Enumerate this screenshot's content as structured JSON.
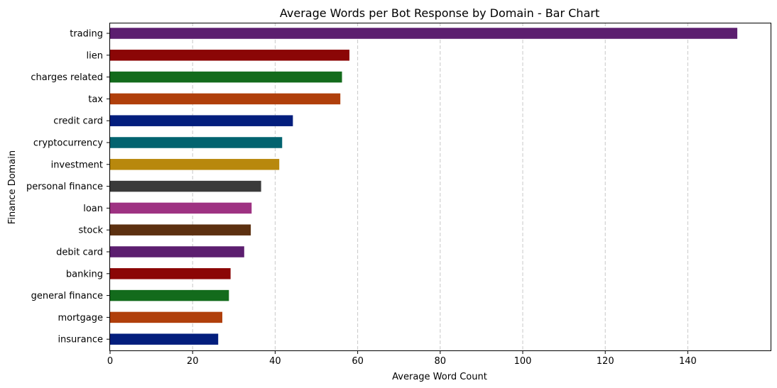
{
  "chart_data": {
    "type": "bar",
    "orientation": "horizontal",
    "title": "Average Words per Bot Response by Domain - Bar Chart",
    "xlabel": "Average Word Count",
    "ylabel": "Finance Domain",
    "xlim": [
      0,
      160
    ],
    "xticks": [
      0,
      20,
      40,
      60,
      80,
      100,
      120,
      140
    ],
    "grid": "x dashed",
    "categories": [
      "trading",
      "lien",
      "charges related",
      "tax",
      "credit card",
      "cryptocurrency",
      "investment",
      "personal finance",
      "loan",
      "stock",
      "debit card",
      "banking",
      "general finance",
      "mortgage",
      "insurance"
    ],
    "values": [
      152,
      58,
      56.2,
      55.8,
      44.3,
      41.7,
      41,
      36.6,
      34.3,
      34.1,
      32.5,
      29.2,
      28.8,
      27.2,
      26.2
    ],
    "colors": [
      "#5c1e6f",
      "#8b0606",
      "#136b1c",
      "#b03f0b",
      "#031e7d",
      "#02636f",
      "#b8880d",
      "#3a3a3a",
      "#9e3282",
      "#5c3010",
      "#5c1e6f",
      "#8b0606",
      "#136b1c",
      "#b03f0b",
      "#031e7d"
    ]
  }
}
